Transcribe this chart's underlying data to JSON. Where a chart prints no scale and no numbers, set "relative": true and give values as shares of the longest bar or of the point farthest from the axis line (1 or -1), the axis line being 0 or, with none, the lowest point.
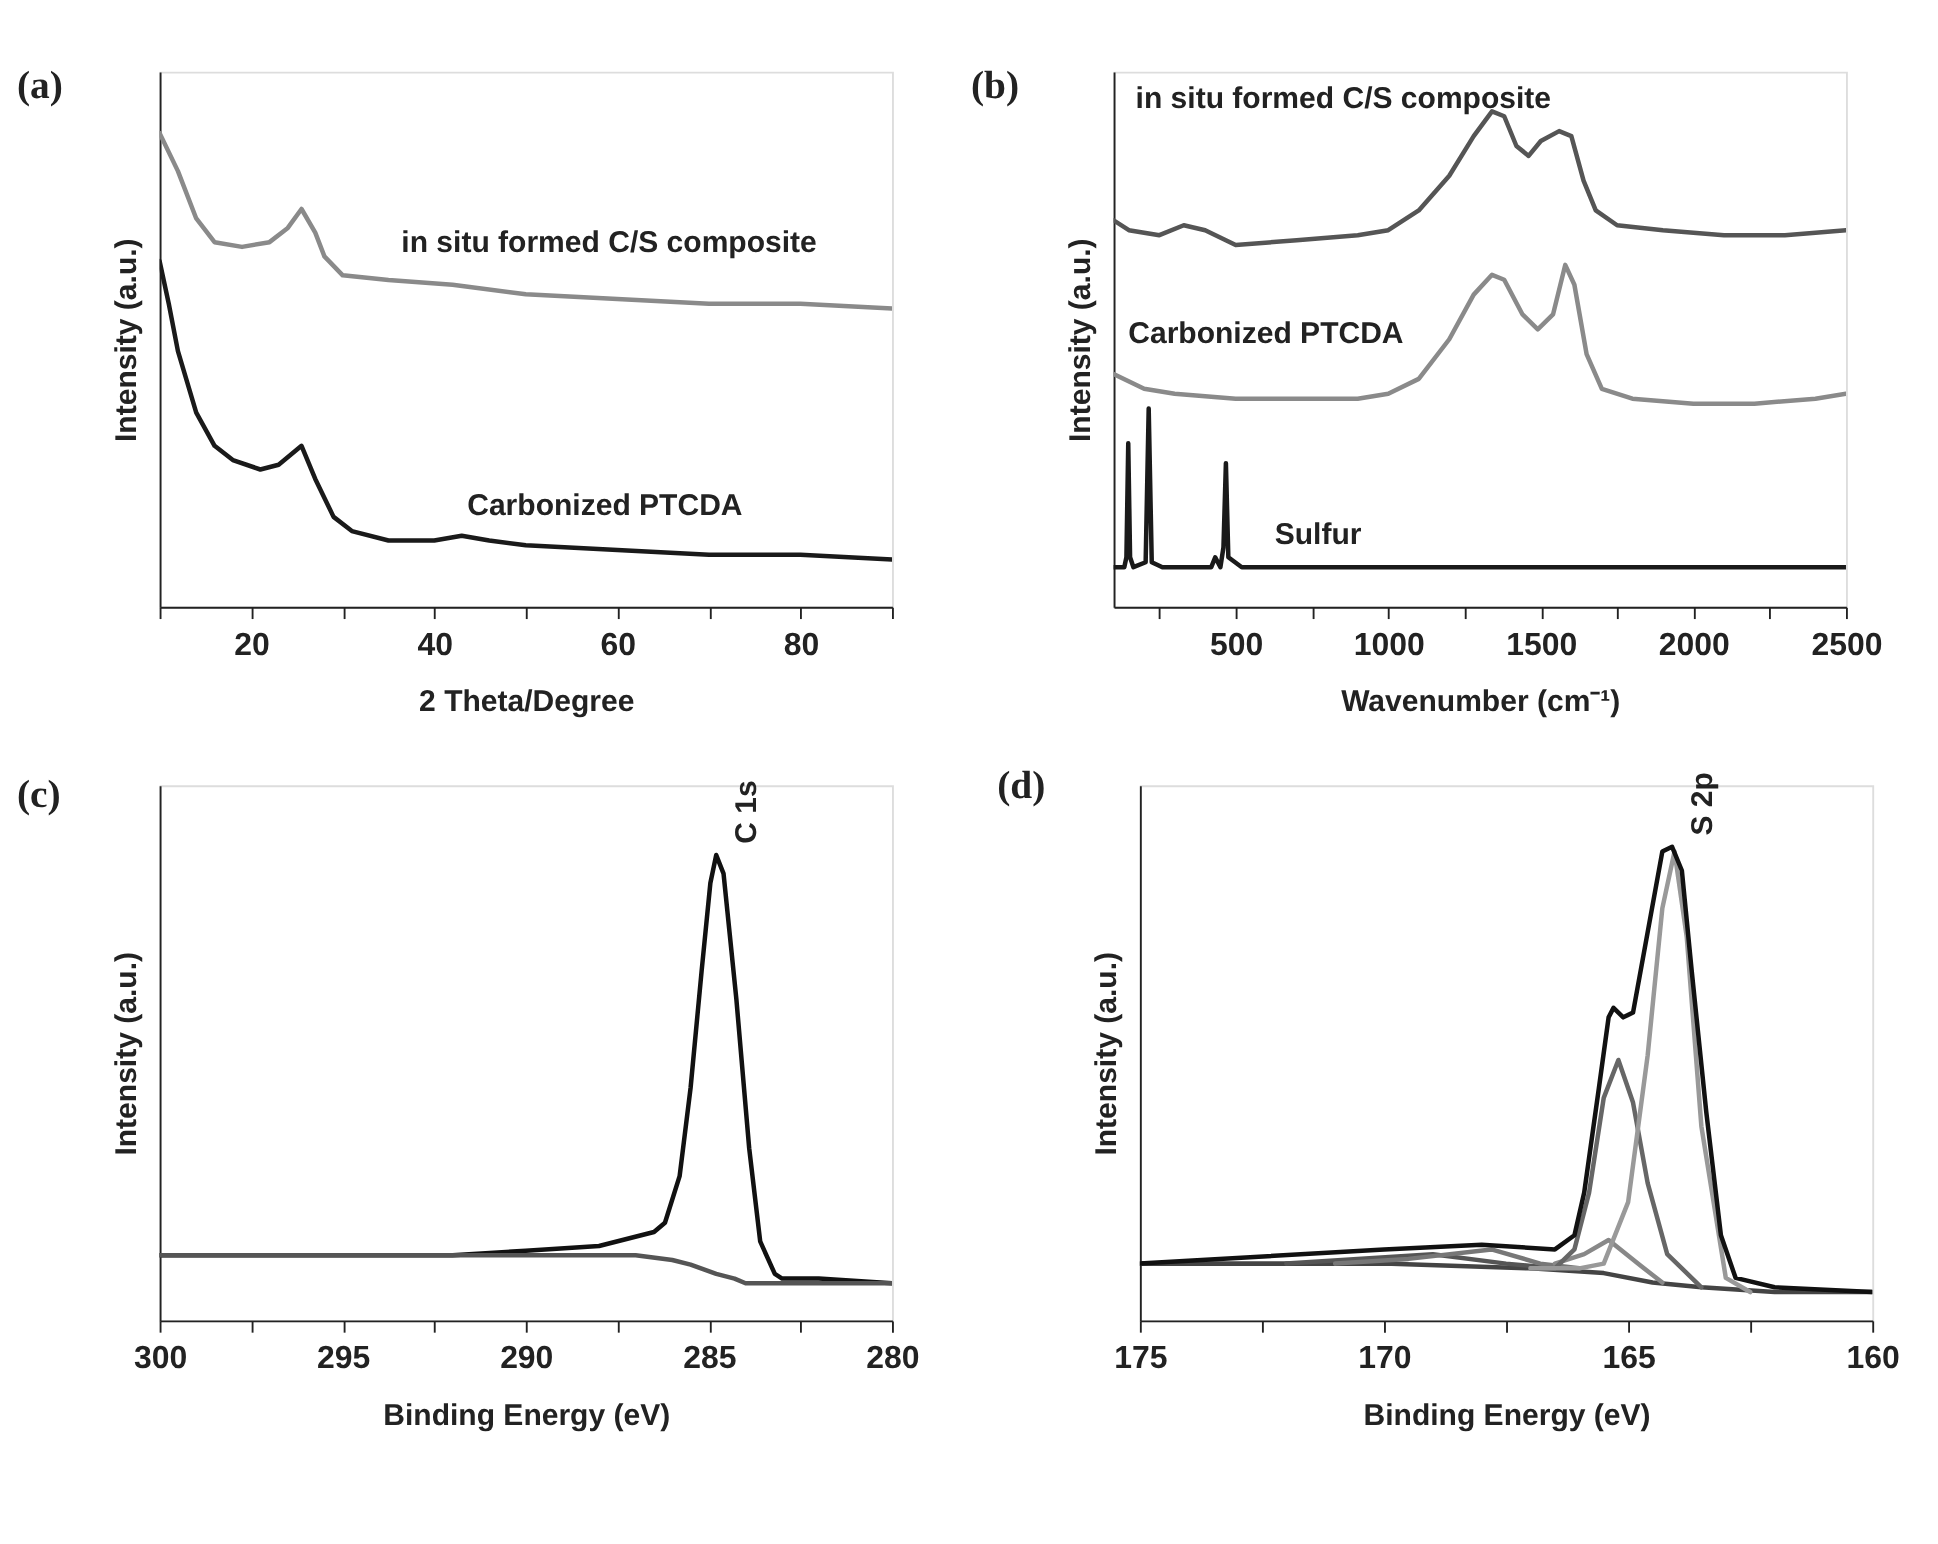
{
  "chart_data": [
    {
      "type": "line",
      "title": "(a)",
      "xlabel": "2 Theta/Degree",
      "ylabel": "Intensity (a.u.)",
      "relative": true,
      "grid": false,
      "xlim": [
        10,
        90
      ],
      "xticks": [
        {
          "value": 10,
          "label": null
        },
        20,
        {
          "value": 30,
          "label": null
        },
        40,
        {
          "value": 50,
          "label": null
        },
        60,
        {
          "value": 70,
          "label": null
        },
        80,
        {
          "value": 90,
          "label": null
        }
      ],
      "series": [
        {
          "name": "in situ formed C/S composite",
          "color": "#8a8a8a",
          "x": [
            10,
            12,
            14,
            16,
            19,
            22,
            24,
            25.5,
            27,
            28,
            30,
            35,
            42,
            50,
            60,
            70,
            80,
            90
          ],
          "values": [
            1.0,
            0.92,
            0.82,
            0.77,
            0.76,
            0.77,
            0.8,
            0.84,
            0.79,
            0.74,
            0.7,
            0.69,
            0.68,
            0.66,
            0.65,
            0.64,
            0.64,
            0.63
          ]
        },
        {
          "name": "Carbonized PTCDA",
          "color": "#1a1a1a",
          "x": [
            10,
            11,
            12,
            14,
            16,
            18,
            21,
            23,
            25.5,
            27,
            29,
            31,
            35,
            40,
            43,
            46,
            50,
            60,
            70,
            80,
            90
          ],
          "values": [
            0.73,
            0.64,
            0.54,
            0.41,
            0.34,
            0.31,
            0.29,
            0.3,
            0.34,
            0.27,
            0.19,
            0.16,
            0.14,
            0.14,
            0.15,
            0.14,
            0.13,
            0.12,
            0.11,
            0.11,
            0.1
          ]
        }
      ]
    },
    {
      "type": "line",
      "title": "(b)",
      "xlabel": "Wavenumber (cm⁻¹)",
      "ylabel": "Intensity (a.u.)",
      "relative": true,
      "grid": false,
      "xlim": [
        100,
        2500
      ],
      "xticks": [
        {
          "value": 250,
          "label": null
        },
        500,
        {
          "value": 750,
          "label": null
        },
        1000,
        {
          "value": 1250,
          "label": null
        },
        1500,
        {
          "value": 1750,
          "label": null
        },
        2000,
        {
          "value": 2250,
          "label": null
        },
        2500
      ],
      "series": [
        {
          "name": "in situ formed C/S composite",
          "color": "#555555",
          "x": [
            100,
            150,
            250,
            330,
            400,
            500,
            700,
            900,
            1000,
            1100,
            1200,
            1280,
            1340,
            1380,
            1420,
            1460,
            1500,
            1560,
            1600,
            1640,
            1680,
            1750,
            1900,
            2100,
            2300,
            2500
          ],
          "values": [
            0.78,
            0.76,
            0.75,
            0.77,
            0.76,
            0.73,
            0.74,
            0.75,
            0.76,
            0.8,
            0.87,
            0.95,
            1.0,
            0.99,
            0.93,
            0.91,
            0.94,
            0.96,
            0.95,
            0.86,
            0.8,
            0.77,
            0.76,
            0.75,
            0.75,
            0.76
          ]
        },
        {
          "name": "Carbonized PTCDA",
          "color": "#8a8a8a",
          "x": [
            100,
            200,
            300,
            500,
            700,
            900,
            1000,
            1100,
            1200,
            1280,
            1340,
            1380,
            1440,
            1490,
            1540,
            1580,
            1610,
            1650,
            1700,
            1800,
            2000,
            2200,
            2400,
            2500
          ],
          "values": [
            0.47,
            0.44,
            0.43,
            0.42,
            0.42,
            0.42,
            0.43,
            0.46,
            0.54,
            0.63,
            0.67,
            0.66,
            0.59,
            0.56,
            0.59,
            0.69,
            0.65,
            0.51,
            0.44,
            0.42,
            0.41,
            0.41,
            0.42,
            0.43
          ]
        },
        {
          "name": "Sulfur",
          "color": "#1a1a1a",
          "x": [
            100,
            135,
            142,
            148,
            154,
            165,
            205,
            215,
            225,
            260,
            420,
            433,
            450,
            460,
            468,
            476,
            520,
            1000,
            1500,
            2000,
            2500
          ],
          "values": [
            0.08,
            0.08,
            0.1,
            0.33,
            0.1,
            0.08,
            0.09,
            0.4,
            0.09,
            0.08,
            0.08,
            0.1,
            0.08,
            0.12,
            0.29,
            0.1,
            0.08,
            0.08,
            0.08,
            0.08,
            0.08
          ]
        }
      ]
    },
    {
      "type": "line",
      "title": "(c)",
      "xlabel": "Binding Energy (eV)",
      "ylabel": "Intensity (a.u.)",
      "relative": true,
      "grid": false,
      "xlim": [
        300,
        280
      ],
      "xticks": [
        300,
        {
          "value": 297.5,
          "label": null
        },
        295,
        {
          "value": 292.5,
          "label": null
        },
        290,
        {
          "value": 287.5,
          "label": null
        },
        285,
        {
          "value": 282.5,
          "label": null
        },
        280
      ],
      "annotations": [
        {
          "text": "C 1s",
          "x": 284.8,
          "y": 1.0
        }
      ],
      "series": [
        {
          "color": "#111111",
          "x": [
            300,
            295,
            292,
            290,
            288,
            286.5,
            286.2,
            285.8,
            285.5,
            285.2,
            284.96,
            284.8,
            284.6,
            284.25,
            283.9,
            283.6,
            283.2,
            283,
            282,
            280
          ],
          "values": [
            0.14,
            0.14,
            0.14,
            0.15,
            0.16,
            0.19,
            0.21,
            0.31,
            0.5,
            0.75,
            0.94,
            1.0,
            0.96,
            0.69,
            0.37,
            0.17,
            0.1,
            0.09,
            0.09,
            0.08
          ]
        },
        {
          "color": "#555555",
          "x": [
            300,
            290,
            287,
            286,
            285.5,
            284.8,
            284.3,
            284,
            280
          ],
          "values": [
            0.14,
            0.14,
            0.14,
            0.13,
            0.12,
            0.1,
            0.09,
            0.08,
            0.08
          ]
        }
      ]
    },
    {
      "type": "line",
      "title": "(d)",
      "xlabel": "Binding Energy (eV)",
      "ylabel": "Intensity (a.u.)",
      "relative": true,
      "grid": false,
      "xlim": [
        175,
        160
      ],
      "xticks": [
        175,
        {
          "value": 172.5,
          "label": null
        },
        170,
        {
          "value": 167.5,
          "label": null
        },
        165,
        {
          "value": 162.5,
          "label": null
        },
        160
      ],
      "annotations": [
        {
          "text": "S 2p",
          "x": 164.1,
          "y": 1.0
        }
      ],
      "series": [
        {
          "color": "#444444",
          "x": [
            175,
            170,
            167,
            165.5,
            164.5,
            163.5,
            162,
            160
          ],
          "values": [
            0.12,
            0.12,
            0.11,
            0.1,
            0.08,
            0.07,
            0.06,
            0.06
          ]
        },
        {
          "color": "#555555",
          "x": [
            172,
            169,
            167.5,
            166.5
          ],
          "values": [
            0.12,
            0.14,
            0.12,
            0.11
          ]
        },
        {
          "color": "#777777",
          "x": [
            171,
            169.5,
            167.8,
            166.8,
            166
          ],
          "values": [
            0.12,
            0.13,
            0.15,
            0.12,
            0.11
          ]
        },
        {
          "color": "#888888",
          "x": [
            166.5,
            165.9,
            165.4,
            164.8,
            164.3
          ],
          "values": [
            0.12,
            0.14,
            0.17,
            0.12,
            0.08
          ]
        },
        {
          "color": "#666666",
          "x": [
            167,
            166.5,
            166.1,
            165.8,
            165.5,
            165.2,
            164.9,
            164.6,
            164.2,
            163.5
          ],
          "values": [
            0.11,
            0.11,
            0.15,
            0.27,
            0.47,
            0.55,
            0.46,
            0.29,
            0.14,
            0.07
          ]
        },
        {
          "color": "#999999",
          "x": [
            167,
            166,
            165.5,
            165.0,
            164.6,
            164.3,
            164.05,
            163.8,
            163.5,
            163,
            162.5
          ],
          "values": [
            0.11,
            0.11,
            0.12,
            0.25,
            0.56,
            0.87,
            0.99,
            0.81,
            0.41,
            0.09,
            0.06
          ]
        },
        {
          "color": "#111111",
          "x": [
            175,
            170,
            168,
            166.5,
            166.1,
            165.9,
            165.6,
            165.4,
            165.3,
            165.1,
            164.9,
            164.6,
            164.3,
            164.1,
            163.9,
            163.7,
            163.4,
            163.1,
            162.8,
            162,
            160
          ],
          "values": [
            0.12,
            0.15,
            0.16,
            0.15,
            0.18,
            0.27,
            0.49,
            0.64,
            0.66,
            0.64,
            0.65,
            0.82,
            0.99,
            1.0,
            0.95,
            0.74,
            0.44,
            0.18,
            0.09,
            0.07,
            0.06
          ]
        }
      ]
    }
  ]
}
